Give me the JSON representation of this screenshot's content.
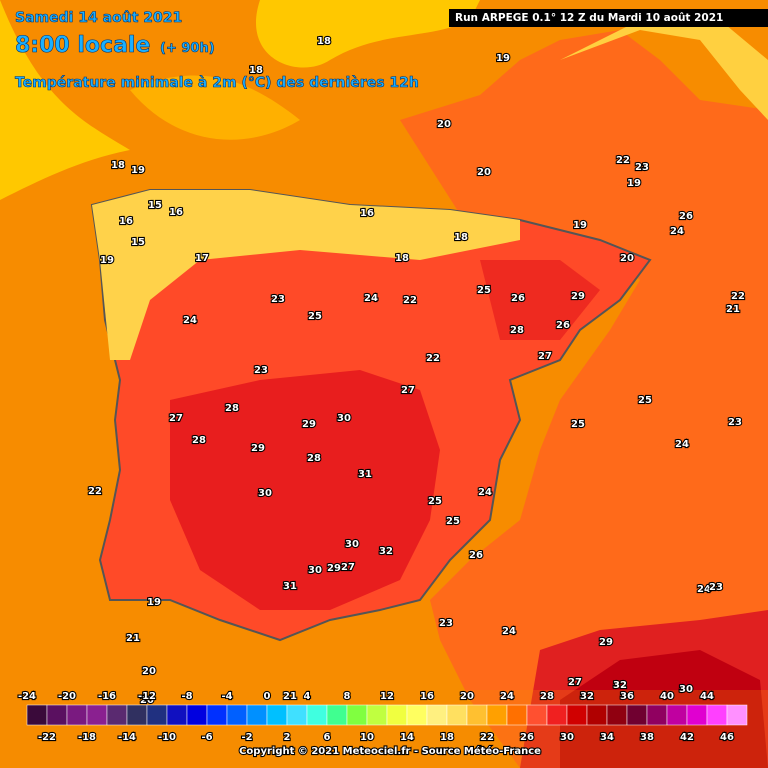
{
  "header": {
    "date": "Samedi 14 août 2021",
    "time": "8:00 locale",
    "lead": "(+ 90h)",
    "subtitle": "Température minimale à 2m (°C) des dernières 12h",
    "run": "Run ARPEGE 0.1° 12 Z du Mardi 10 août 2021"
  },
  "map": {
    "labels": [
      "18",
      "18",
      "18",
      "19",
      "20",
      "20",
      "19",
      "22",
      "23",
      "24",
      "26",
      "16",
      "15",
      "15",
      "16",
      "17",
      "18",
      "16",
      "18",
      "19",
      "19",
      "20",
      "19",
      "23",
      "24",
      "25",
      "26",
      "28",
      "29",
      "27",
      "26",
      "23",
      "22",
      "22",
      "25",
      "24",
      "27",
      "28",
      "30",
      "29",
      "27",
      "28",
      "29",
      "30",
      "28",
      "31",
      "32",
      "30",
      "29",
      "27",
      "30",
      "31",
      "25",
      "26",
      "24",
      "25",
      "23",
      "24",
      "25",
      "24",
      "23",
      "22",
      "21",
      "19",
      "20",
      "21",
      "22",
      "24",
      "23",
      "25",
      "29",
      "30",
      "32",
      "27",
      "20",
      "21"
    ]
  },
  "scale": {
    "top_labels": [
      "-24",
      "-20",
      "-16",
      "-12",
      "-8",
      "-4",
      "0",
      "4",
      "8",
      "12",
      "16",
      "20",
      "24",
      "28",
      "32",
      "36",
      "40",
      "44"
    ],
    "bottom_labels": [
      "-22",
      "-18",
      "-14",
      "-10",
      "-6",
      "-2",
      "2",
      "6",
      "10",
      "14",
      "18",
      "22",
      "26",
      "30",
      "34",
      "38",
      "42",
      "46"
    ],
    "colors": [
      "#3a0a3a",
      "#5a1060",
      "#7a1a80",
      "#8a2090",
      "#5a2a70",
      "#303060",
      "#203080",
      "#1010c0",
      "#0000e0",
      "#0030ff",
      "#0060ff",
      "#0090ff",
      "#00c0ff",
      "#40e0ff",
      "#40ffe0",
      "#40ff90",
      "#80ff40",
      "#c0ff40",
      "#f0ff40",
      "#ffff60",
      "#fff080",
      "#ffe060",
      "#ffc030",
      "#ffa000",
      "#ff7000",
      "#ff5030",
      "#f02020",
      "#d00000",
      "#b00000",
      "#900010",
      "#700030",
      "#900060",
      "#c000a0",
      "#e000d0",
      "#ff40ff",
      "#ff90ff"
    ]
  },
  "footer": {
    "copyright": "Copyright © 2021 Meteociel.fr - Source Météo-France"
  }
}
